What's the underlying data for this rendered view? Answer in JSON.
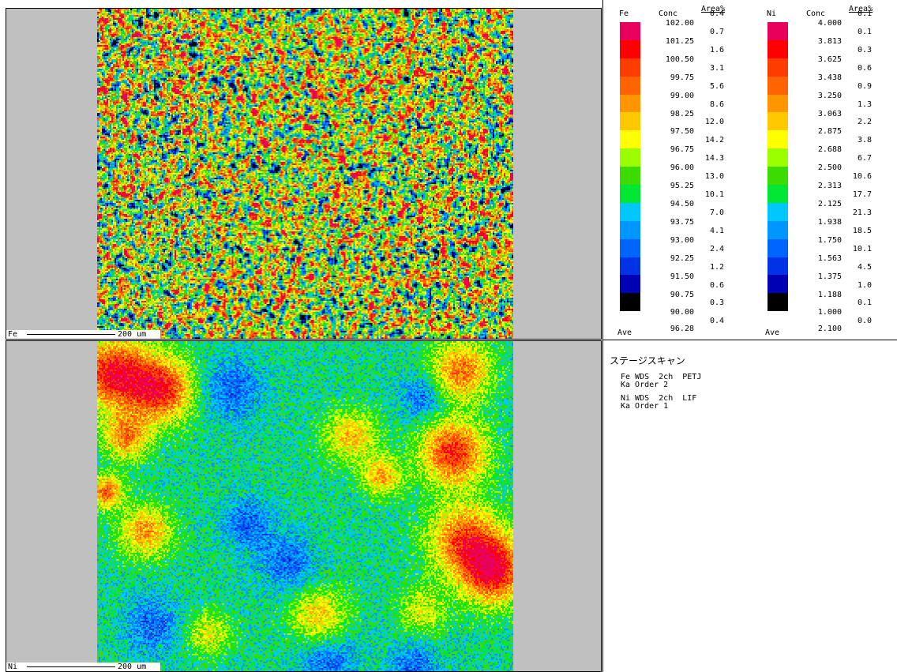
{
  "maps": {
    "fe": {
      "label": "Fe",
      "scale": "200 um"
    },
    "ni": {
      "label": "Ni",
      "scale": "200 um"
    }
  },
  "legend_fe": {
    "element": "Fe",
    "conc_header": "Conc",
    "area_header": "Area%",
    "colors": [
      "#e8005a",
      "#ff0000",
      "#ff3c00",
      "#ff6400",
      "#ff9600",
      "#ffc800",
      "#ffff00",
      "#9bff00",
      "#3cdc00",
      "#00e632",
      "#00c8ff",
      "#0096ff",
      "#0064ff",
      "#0032e6",
      "#0000b4",
      "#000000"
    ],
    "conc": [
      "102.00",
      "101.25",
      "100.50",
      "99.75",
      "99.00",
      "98.25",
      "97.50",
      "96.75",
      "96.00",
      "95.25",
      "94.50",
      "93.75",
      "93.00",
      "92.25",
      "91.50",
      "90.75",
      "90.00"
    ],
    "area": [
      "0.4",
      "0.7",
      "1.6",
      "3.1",
      "5.6",
      "8.6",
      "12.0",
      "14.2",
      "14.3",
      "13.0",
      "10.1",
      "7.0",
      "4.1",
      "2.4",
      "1.2",
      "0.6",
      "0.3",
      "0.4"
    ],
    "ave_label": "Ave",
    "ave_value": "96.28"
  },
  "legend_ni": {
    "element": "Ni",
    "conc_header": "Conc",
    "area_header": "Area%",
    "colors": [
      "#e8005a",
      "#ff0000",
      "#ff3c00",
      "#ff6400",
      "#ff9600",
      "#ffc800",
      "#ffff00",
      "#9bff00",
      "#3cdc00",
      "#00e632",
      "#00c8ff",
      "#0096ff",
      "#0064ff",
      "#0032e6",
      "#0000b4",
      "#000000"
    ],
    "conc": [
      "4.000",
      "3.813",
      "3.625",
      "3.438",
      "3.250",
      "3.063",
      "2.875",
      "2.688",
      "2.500",
      "2.313",
      "2.125",
      "1.938",
      "1.750",
      "1.563",
      "1.375",
      "1.188",
      "1.000"
    ],
    "area": [
      "0.1",
      "0.1",
      "0.3",
      "0.6",
      "0.9",
      "1.3",
      "2.2",
      "3.8",
      "6.7",
      "10.6",
      "17.7",
      "21.3",
      "18.5",
      "10.1",
      "4.5",
      "1.0",
      "0.1",
      "0.0"
    ],
    "ave_label": "Ave",
    "ave_value": "2.100"
  },
  "scan": {
    "title": "ステージスキャン",
    "fe_line1": "Fe WDS  2ch  PETJ",
    "fe_line2": "Ka Order 2",
    "ni_line1": "Ni WDS  2ch  LIF",
    "ni_line2": "Ka Order 1"
  }
}
